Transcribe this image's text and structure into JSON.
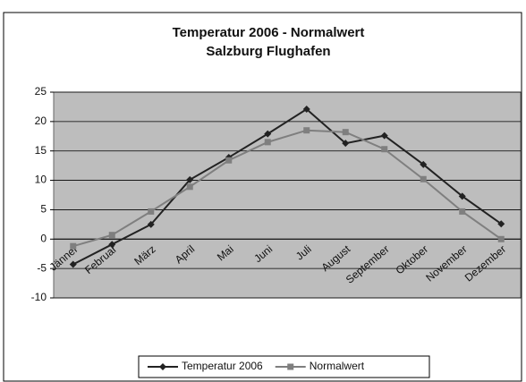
{
  "chart_data": {
    "type": "line",
    "title": "Temperatur 2006 - Normalwert",
    "subtitle": "Salzburg Flughafen",
    "categories": [
      "Jänner",
      "Februar",
      "März",
      "April",
      "Mai",
      "Juni",
      "Juli",
      "August",
      "September",
      "Oktober",
      "November",
      "Dezember"
    ],
    "series": [
      {
        "name": "Temperatur 2006",
        "color": "#222222",
        "marker": "diamond",
        "values": [
          -4.3,
          -0.9,
          2.5,
          10.1,
          13.9,
          17.9,
          22.1,
          16.3,
          17.6,
          12.7,
          7.3,
          2.6
        ]
      },
      {
        "name": "Normalwert",
        "color": "#7f7f7f",
        "marker": "square",
        "values": [
          -1.2,
          0.7,
          4.7,
          8.9,
          13.4,
          16.5,
          18.5,
          18.2,
          15.3,
          10.2,
          4.7,
          0.0
        ]
      }
    ],
    "ylim": [
      -10,
      25
    ],
    "yticks": [
      -10,
      -5,
      0,
      5,
      10,
      15,
      20,
      25
    ],
    "grid": true,
    "legend": "bottom"
  }
}
